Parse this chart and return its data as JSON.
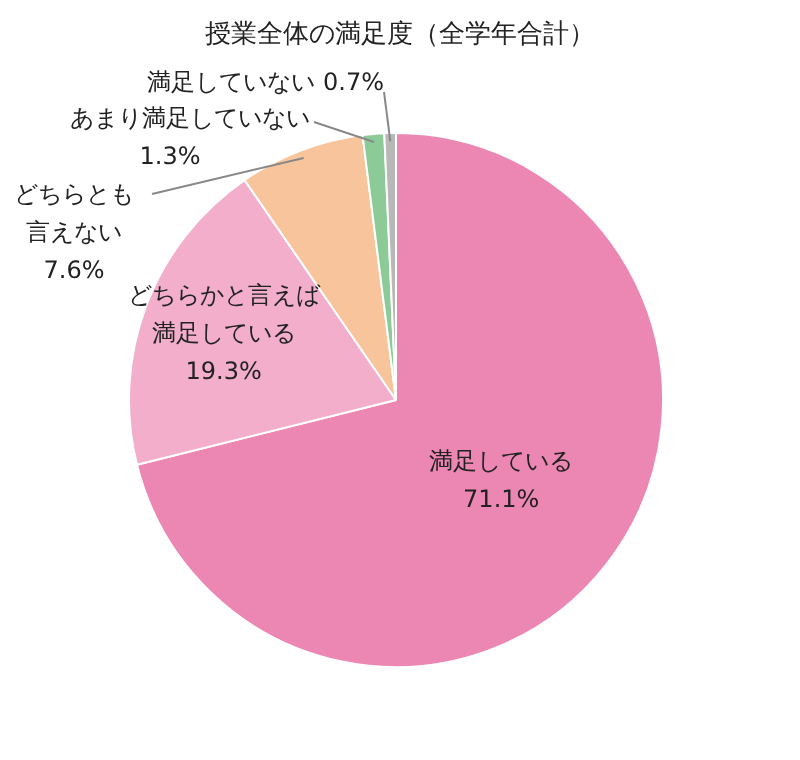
{
  "chart_data": {
    "type": "pie",
    "title": "授業全体の満足度（全学年合計）",
    "categories": [
      "満足している",
      "どちらかと言えば満足している",
      "どちらとも言えない",
      "あまり満足していない",
      "満足していない"
    ],
    "values": [
      71.1,
      19.3,
      7.6,
      1.3,
      0.7
    ],
    "value_labels": [
      "71.1%",
      "19.3%",
      "7.6%",
      "1.3%",
      "0.7%"
    ],
    "colors": [
      "#ec86b3",
      "#f2aecb",
      "#f7c49b",
      "#8ccb98",
      "#b8b8b8"
    ],
    "legend": false
  }
}
